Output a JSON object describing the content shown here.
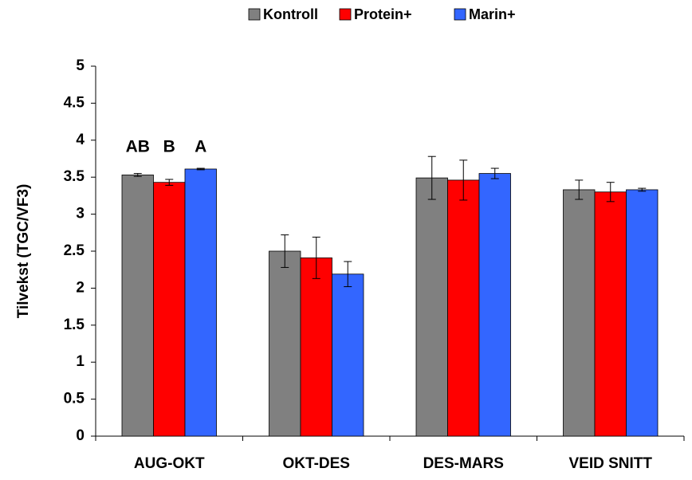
{
  "chart_data": {
    "type": "bar",
    "ylabel": "Tilvekst (TGC/VF3)",
    "categories": [
      "AUG-OKT",
      "OKT-DES",
      "DES-MARS",
      "VEID SNITT"
    ],
    "series": [
      {
        "name": "Kontroll",
        "color": "#808080",
        "values": [
          3.53,
          2.5,
          3.49,
          3.33
        ],
        "errors": [
          0.02,
          0.22,
          0.29,
          0.13
        ]
      },
      {
        "name": "Protein+",
        "color": "#ff0000",
        "values": [
          3.43,
          2.41,
          3.46,
          3.3
        ],
        "errors": [
          0.04,
          0.28,
          0.27,
          0.13
        ]
      },
      {
        "name": "Marin+",
        "color": "#3366ff",
        "values": [
          3.61,
          2.19,
          3.55,
          3.33
        ],
        "errors": [
          0.01,
          0.17,
          0.07,
          0.02
        ]
      }
    ],
    "annotations": [
      "AB",
      "B",
      "A"
    ],
    "ylim": [
      0,
      5
    ],
    "yticks": [
      0,
      0.5,
      1,
      1.5,
      2,
      2.5,
      3,
      3.5,
      4,
      4.5,
      5
    ]
  }
}
